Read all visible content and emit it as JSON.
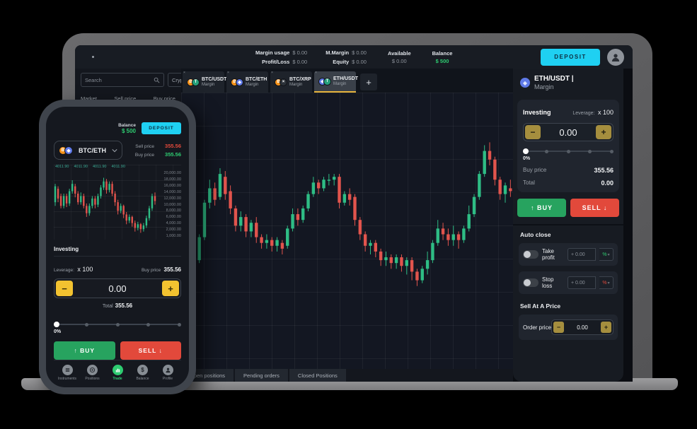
{
  "colors": {
    "accent_cyan": "#1fd0f2",
    "up_green": "#2ebd85",
    "down_red": "#e2544d",
    "buy_green": "#27a35f",
    "sell_red": "#e2493b",
    "balance_green": "#2ecc71",
    "active_tab_underline": "#e6b43c",
    "stepper_yellow": "#f2c230",
    "stepper_gold": "#a58e3e"
  },
  "glyphs": {
    "btc": "B",
    "usdt": "T",
    "eth": "◆",
    "xrp": "×",
    "minus": "−",
    "plus": "+",
    "arrow_up": "↑",
    "arrow_down": "↓",
    "close": "×",
    "add_tab": "+",
    "dropdown": "▾"
  },
  "laptop": {
    "topbar": {
      "stats": [
        {
          "label": "Margin usage",
          "value": "$ 0.00"
        },
        {
          "label": "Profit/Loss",
          "value": "$ 0.00"
        },
        {
          "label": "M.Margin",
          "value": "$ 0.00"
        },
        {
          "label": "Equity",
          "value": "$ 0.00"
        }
      ],
      "available": {
        "label": "Available",
        "value": "$ 0.00"
      },
      "balance": {
        "label": "Balance",
        "value": "$ 500"
      },
      "deposit_label": "DEPOSIT"
    },
    "sidebar": {
      "search_placeholder": "Search",
      "category": "Crypto",
      "columns": [
        "Market",
        "Sell price",
        "Buy price"
      ]
    },
    "tabs": [
      {
        "pair": "BTC/USDT",
        "kind": "Margin"
      },
      {
        "pair": "BTC/ETH",
        "kind": "Margin"
      },
      {
        "pair": "BTC/XRP",
        "kind": "Margin"
      },
      {
        "pair": "ETH/USDT",
        "kind": "Margin"
      }
    ],
    "bottom_tabs": [
      "Open positions",
      "Pending orders",
      "Closed Positions"
    ],
    "panel": {
      "pair": "ETH/USDT |",
      "kind": "Margin",
      "investing_label": "Investing",
      "leverage_label": "Leverage:",
      "leverage_value": "x 100",
      "amount": "0.00",
      "percent": "0%",
      "buy_price_label": "Buy price",
      "buy_price": "355.56",
      "total_label": "Total",
      "total": "0.00",
      "buy_label": "BUY",
      "sell_label": "SELL",
      "auto_close_label": "Auto close",
      "take_profit_label": "Take profit",
      "take_profit_value": "+ 0.00",
      "stop_loss_label": "Stop loss",
      "stop_loss_value": "+ 0.00",
      "unit": "%",
      "sell_at_price_label": "Sell At A Price",
      "order_price_label": "Order price",
      "order_price": "0.00"
    }
  },
  "phone": {
    "balance_label": "Balance",
    "balance_value": "$ 500",
    "deposit_label": "DEPOSIT",
    "pair": "BTC/ETH",
    "sell_price_label": "Sell price",
    "sell_price": "355.56",
    "buy_price_label": "Buy price",
    "buy_price": "355.56",
    "investing_label": "Investing",
    "leverage_label": "Leverage:",
    "leverage_value": "x 100",
    "buy_price_top_label": "Buy price",
    "buy_price_top": "355.56",
    "amount": "0.00",
    "total_label": "Total",
    "total": "355.56",
    "percent": "0%",
    "buy_label": "BUY",
    "sell_label": "SELL",
    "nav": [
      {
        "label": "Instruments"
      },
      {
        "label": "Positions"
      },
      {
        "label": "Trade"
      },
      {
        "label": "Balance"
      },
      {
        "label": "Profile"
      }
    ]
  },
  "chart_data": [
    {
      "type": "candlestick",
      "name": "main-chart",
      "title": "ETH/USDT Margin candlestick chart",
      "up_color": "#2ebd85",
      "down_color": "#e2544d",
      "grid": true,
      "candles_ohlc": [
        [
          20,
          29,
          16,
          28
        ],
        [
          27,
          30,
          20,
          22
        ],
        [
          26,
          28,
          19,
          21
        ],
        [
          22,
          31,
          21,
          30
        ],
        [
          30,
          43,
          29,
          42
        ],
        [
          42,
          50,
          40,
          47
        ],
        [
          47,
          49,
          41,
          43
        ],
        [
          44,
          54,
          43,
          52
        ],
        [
          51,
          53,
          43,
          45
        ],
        [
          46,
          48,
          38,
          40
        ],
        [
          40,
          41,
          32,
          34
        ],
        [
          34,
          39,
          32,
          37
        ],
        [
          37,
          38,
          30,
          32
        ],
        [
          32,
          36,
          30,
          35
        ],
        [
          35,
          37,
          28,
          30
        ],
        [
          30,
          31,
          26,
          28
        ],
        [
          28,
          31,
          26,
          29
        ],
        [
          29,
          30,
          25,
          27
        ],
        [
          27,
          30,
          25,
          29
        ],
        [
          28,
          29,
          24,
          26
        ],
        [
          27,
          34,
          26,
          33
        ],
        [
          33,
          40,
          32,
          38
        ],
        [
          38,
          40,
          34,
          36
        ],
        [
          36,
          41,
          35,
          40
        ],
        [
          40,
          46,
          39,
          45
        ],
        [
          45,
          51,
          44,
          49
        ],
        [
          49,
          50,
          45,
          47
        ],
        [
          47,
          51,
          46,
          50
        ],
        [
          50,
          52,
          48,
          50
        ],
        [
          50,
          52,
          48,
          51
        ],
        [
          51,
          52,
          40,
          42
        ],
        [
          42,
          46,
          41,
          45
        ],
        [
          45,
          47,
          41,
          43
        ],
        [
          44,
          45,
          34,
          36
        ],
        [
          36,
          37,
          29,
          31
        ],
        [
          31,
          32,
          25,
          27
        ],
        [
          27,
          29,
          24,
          28
        ],
        [
          28,
          29,
          23,
          25
        ],
        [
          25,
          26,
          20,
          22
        ],
        [
          22,
          25,
          20,
          23
        ],
        [
          23,
          24,
          19,
          21
        ],
        [
          21,
          24,
          19,
          23
        ],
        [
          23,
          24,
          18,
          20
        ],
        [
          20,
          23,
          17,
          22
        ],
        [
          22,
          23,
          15,
          18
        ],
        [
          18,
          19,
          13,
          15
        ],
        [
          15,
          20,
          14,
          19
        ],
        [
          19,
          25,
          17,
          22
        ],
        [
          22,
          29,
          21,
          28
        ],
        [
          28,
          36,
          27,
          33
        ],
        [
          33,
          35,
          29,
          31
        ],
        [
          31,
          33,
          27,
          29
        ],
        [
          29,
          34,
          27,
          31
        ],
        [
          31,
          32,
          26,
          29
        ],
        [
          29,
          34,
          28,
          33
        ],
        [
          33,
          41,
          32,
          38
        ],
        [
          38,
          45,
          37,
          44
        ],
        [
          44,
          53,
          43,
          52
        ],
        [
          52,
          62,
          51,
          60
        ],
        [
          60,
          63,
          55,
          57
        ],
        [
          57,
          58,
          48,
          50
        ],
        [
          50,
          51,
          43,
          45
        ],
        [
          45,
          49,
          42,
          48
        ],
        [
          47,
          50,
          44,
          46
        ]
      ]
    },
    {
      "type": "candlestick",
      "name": "phone-chart",
      "title": "BTC/ETH candlestick chart",
      "up_color": "#2ebd85",
      "down_color": "#e2544d",
      "grid": true,
      "ohlc_row": [
        "4011.90",
        "4011.90",
        "4011.90",
        "4011.90"
      ],
      "axis_labels": [
        "20,000.00",
        "18,000.00",
        "16,000.00",
        "14,000.00",
        "12,000.00",
        "10,000.00",
        "8,000.00",
        "6,000.00",
        "4,000.00",
        "2,000.00",
        "1,000.00"
      ],
      "candles_ohlc": [
        [
          45,
          60,
          42,
          58
        ],
        [
          56,
          58,
          45,
          48
        ],
        [
          50,
          52,
          40,
          42
        ],
        [
          42,
          52,
          40,
          50
        ],
        [
          50,
          52,
          41,
          44
        ],
        [
          44,
          56,
          42,
          54
        ],
        [
          54,
          63,
          52,
          60
        ],
        [
          58,
          60,
          49,
          52
        ],
        [
          52,
          54,
          43,
          45
        ],
        [
          45,
          53,
          43,
          50
        ],
        [
          50,
          52,
          40,
          42
        ],
        [
          42,
          44,
          33,
          36
        ],
        [
          36,
          44,
          34,
          42
        ],
        [
          42,
          50,
          40,
          48
        ],
        [
          48,
          50,
          40,
          43
        ],
        [
          43,
          52,
          41,
          50
        ],
        [
          50,
          59,
          48,
          57
        ],
        [
          57,
          65,
          55,
          62
        ],
        [
          62,
          64,
          52,
          55
        ],
        [
          55,
          62,
          53,
          60
        ],
        [
          60,
          62,
          50,
          52
        ],
        [
          52,
          54,
          42,
          45
        ],
        [
          45,
          47,
          35,
          38
        ],
        [
          38,
          44,
          36,
          42
        ],
        [
          42,
          43,
          32,
          35
        ],
        [
          35,
          37,
          27,
          30
        ],
        [
          30,
          35,
          28,
          33
        ],
        [
          33,
          34,
          25,
          28
        ],
        [
          28,
          30,
          21,
          24
        ],
        [
          24,
          29,
          22,
          27
        ],
        [
          27,
          28,
          20,
          23
        ],
        [
          23,
          28,
          21,
          26
        ],
        [
          26,
          34,
          24,
          32
        ],
        [
          32,
          42,
          30,
          40
        ],
        [
          40,
          52,
          38,
          50
        ],
        [
          50,
          53,
          43,
          46
        ]
      ]
    }
  ]
}
